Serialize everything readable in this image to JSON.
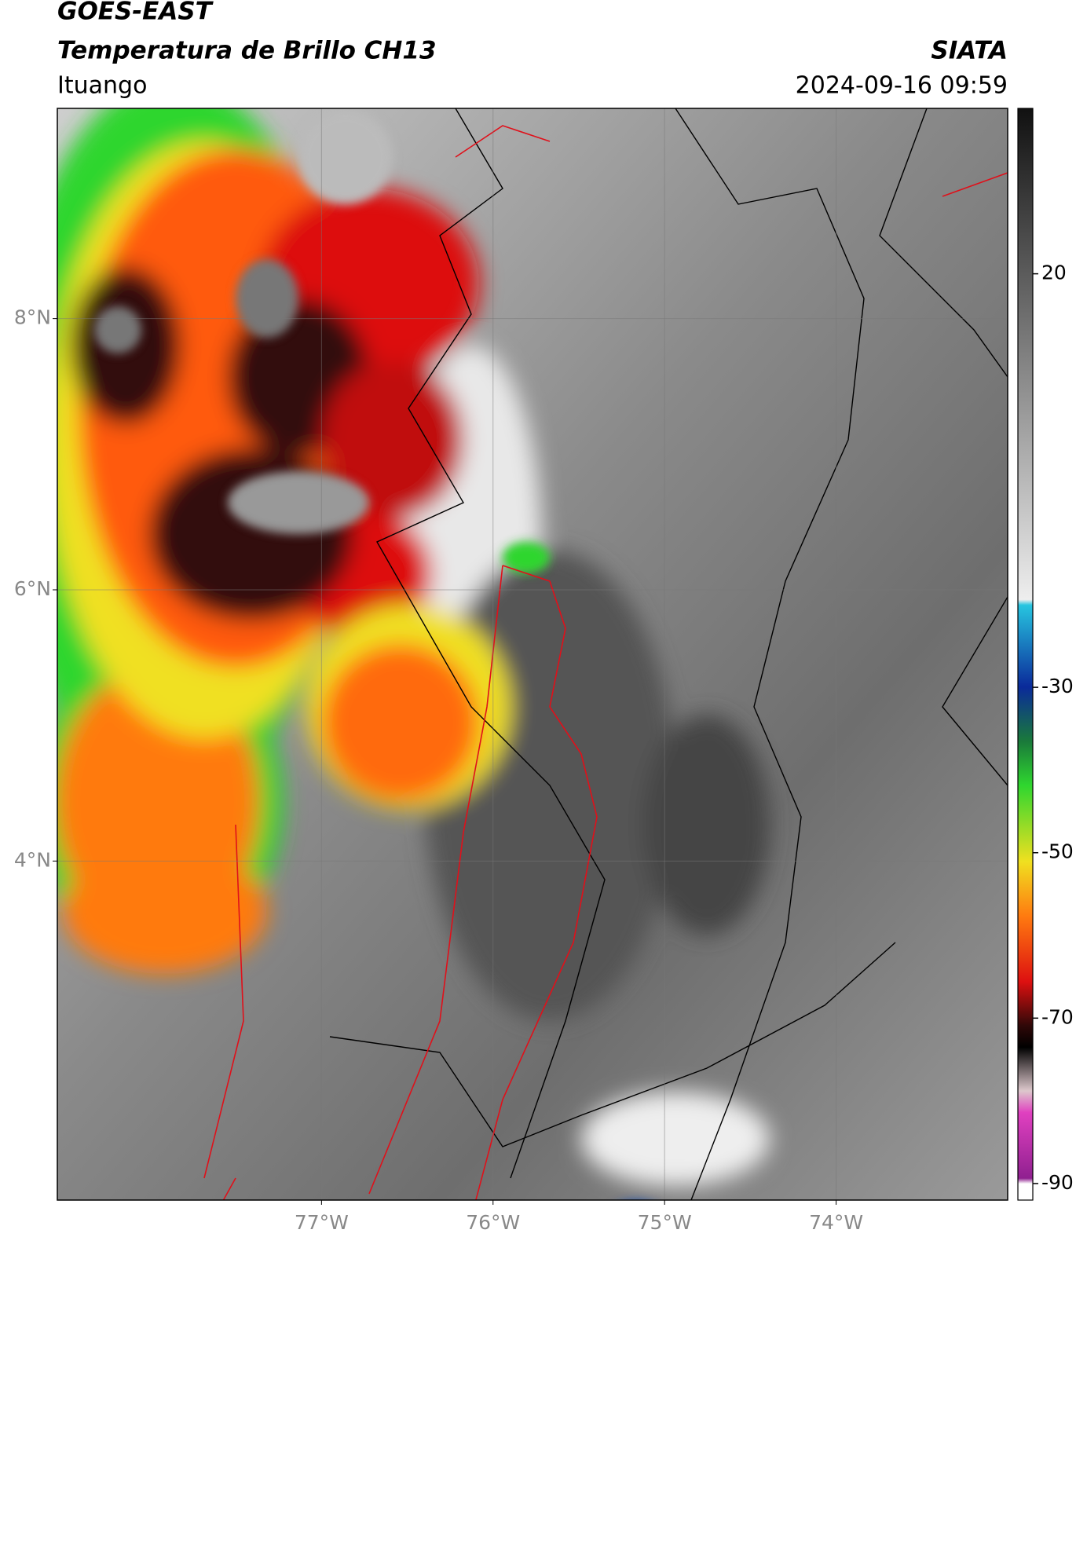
{
  "header": {
    "satellite": "GOES-EAST",
    "product": "Temperatura de Brillo CH13",
    "agency": "SIATA",
    "location": "Ituango",
    "datetime": "2024-09-16 09:59"
  },
  "map": {
    "lonlim": [
      -78.54,
      -73.0
    ],
    "latlim": [
      1.5,
      9.55
    ],
    "lat_ticks": [
      {
        "value": 8,
        "label": "8°N"
      },
      {
        "value": 6,
        "label": "6°N"
      },
      {
        "value": 4,
        "label": "4°N"
      }
    ],
    "lon_ticks": [
      {
        "value": -77,
        "label": "77°W"
      },
      {
        "value": -76,
        "label": "76°W"
      },
      {
        "value": -75,
        "label": "75°W"
      },
      {
        "value": -74,
        "label": "74°W"
      }
    ]
  },
  "colorbar": {
    "lim": [
      -92,
      40
    ],
    "ticks": [
      20,
      -30,
      -50,
      -70,
      -90
    ]
  }
}
